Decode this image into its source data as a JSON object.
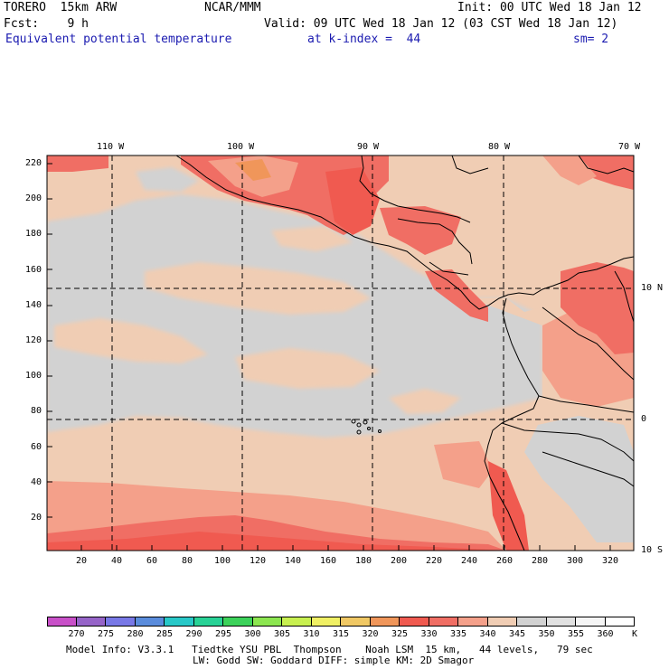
{
  "header": {
    "model": "TORERO  15km ARW",
    "source": "NCAR/MMM",
    "init": "Init: 00 UTC Wed 18 Jan 12",
    "fcst": "Fcst:    9 h",
    "valid": "Valid: 09 UTC Wed 18 Jan 12 (03 CST Wed 18 Jan 12)",
    "field": "Equivalent potential temperature",
    "level": "at k-index =  44",
    "smoothing": "sm= 2"
  },
  "map": {
    "lon_labels": [
      "110 W",
      "100 W",
      "90 W",
      "80 W",
      "70 W"
    ],
    "lat_labels": [
      "10 N",
      "0",
      "10 S"
    ],
    "y_ticks": [
      "220",
      "200",
      "180",
      "160",
      "140",
      "120",
      "100",
      "80",
      "60",
      "40",
      "20"
    ],
    "x_ticks": [
      "20",
      "40",
      "60",
      "80",
      "100",
      "120",
      "140",
      "160",
      "180",
      "200",
      "220",
      "240",
      "260",
      "280",
      "300",
      "320"
    ]
  },
  "colorbar": {
    "levels": [
      "270",
      "275",
      "280",
      "285",
      "290",
      "295",
      "300",
      "305",
      "310",
      "315",
      "320",
      "325",
      "330",
      "335",
      "340",
      "345",
      "350",
      "355",
      "360"
    ],
    "unit": "K",
    "colors": [
      "#c850c8",
      "#9664c8",
      "#7878e6",
      "#5a8cdc",
      "#28c8c8",
      "#28d296",
      "#3cd25a",
      "#8ce650",
      "#c8f050",
      "#f0f064",
      "#f0c864",
      "#f0965a",
      "#f05a50",
      "#f06e64",
      "#f4a08a",
      "#f0cdb4",
      "#d2d2d2",
      "#e1e1e1",
      "#f5f5f5",
      "#ffffff"
    ]
  },
  "footer": {
    "line1": "Model Info: V3.3.1   Tiedtke YSU PBL  Thompson    Noah LSM  15 km,   44 levels,   79 sec",
    "line2": "LW: Godd SW: Goddard DIFF: simple KM: 2D Smagor"
  }
}
